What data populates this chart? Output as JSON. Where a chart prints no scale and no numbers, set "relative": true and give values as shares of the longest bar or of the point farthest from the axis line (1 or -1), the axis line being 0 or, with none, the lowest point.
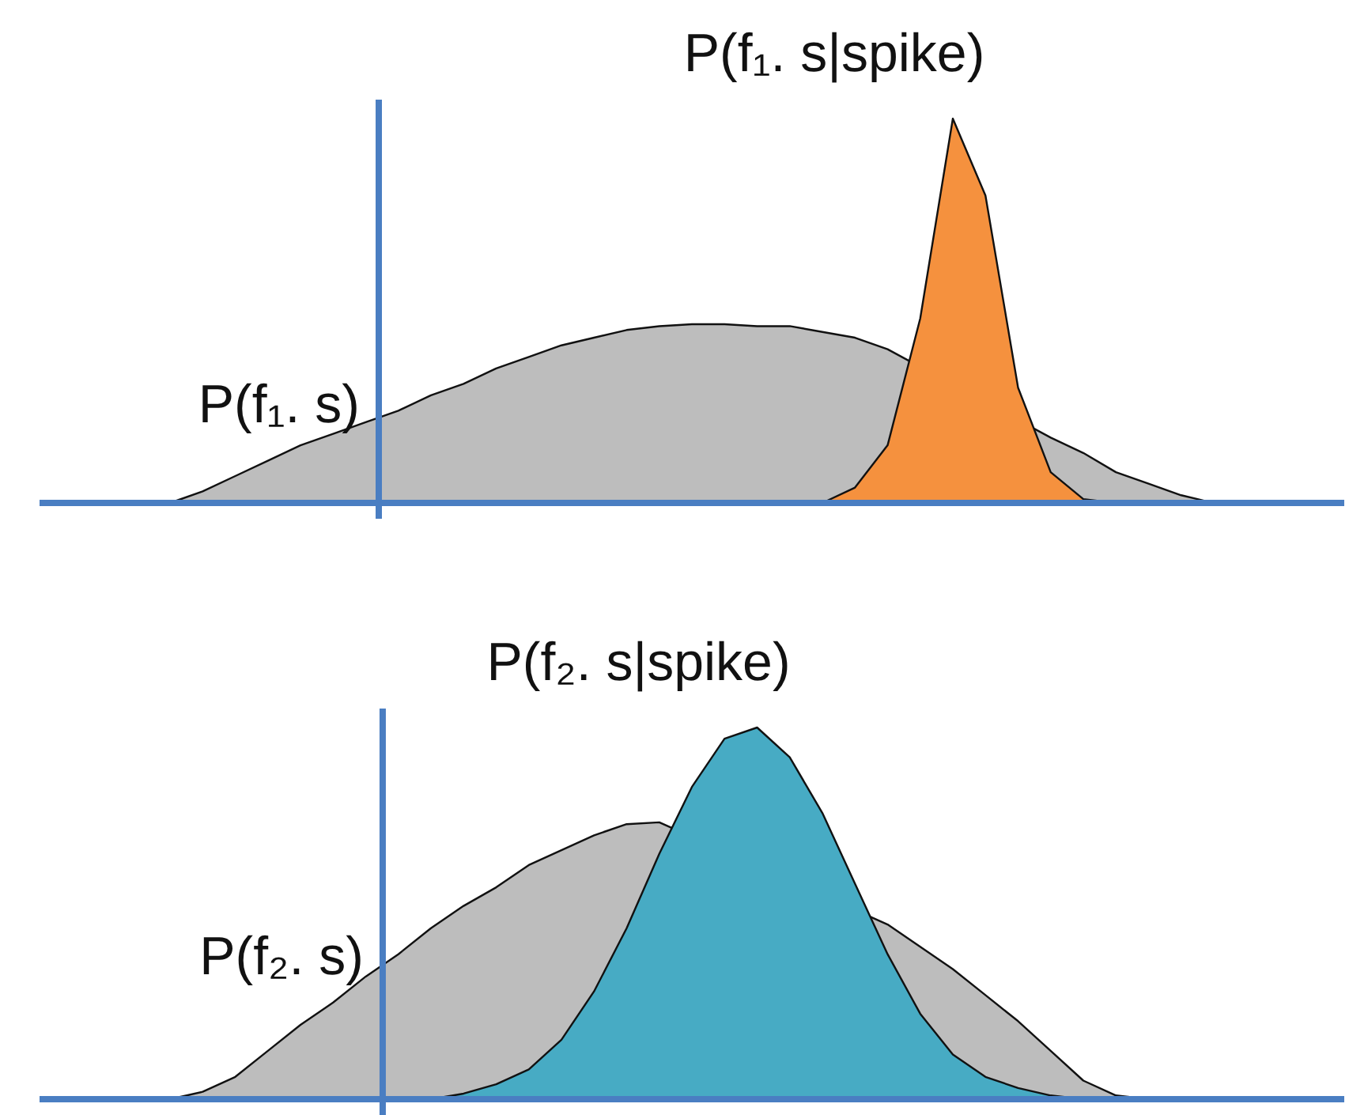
{
  "chart_data": [
    {
      "type": "area",
      "relative": true,
      "categories": [
        null,
        null,
        null,
        null,
        null,
        null,
        null,
        null,
        null,
        null,
        null,
        null,
        null,
        null,
        null,
        null,
        null,
        null,
        null,
        null,
        null,
        null,
        null,
        null,
        null,
        null,
        null,
        null,
        null,
        null,
        null,
        null,
        null,
        null,
        null,
        null,
        null,
        null,
        null,
        null,
        null
      ],
      "series": [
        {
          "name": "P(f₁. s)",
          "color": "#bdbdbd",
          "values": [
            null,
            null,
            null,
            null,
            0,
            0.03,
            0.07,
            0.11,
            0.15,
            0.18,
            0.21,
            0.24,
            0.28,
            0.31,
            0.35,
            0.38,
            0.41,
            0.43,
            0.45,
            0.46,
            0.465,
            0.465,
            0.46,
            0.46,
            0.445,
            0.43,
            0.4,
            null,
            null,
            null,
            null,
            0.17,
            0.13,
            0.08,
            0.05,
            0.02,
            0,
            null,
            null,
            null,
            null
          ]
        },
        {
          "name": "P(f₁. s|spike)",
          "color": "#f5913e",
          "values": [
            null,
            null,
            null,
            null,
            null,
            null,
            null,
            null,
            null,
            null,
            null,
            null,
            null,
            null,
            null,
            null,
            null,
            null,
            null,
            null,
            null,
            null,
            null,
            null,
            0,
            0.04,
            0.15,
            0.48,
            1,
            0.8,
            0.3,
            0.08,
            0.01,
            0,
            null,
            null,
            null,
            null,
            null,
            null,
            null
          ]
        }
      ]
    },
    {
      "type": "area",
      "relative": true,
      "categories": [
        null,
        null,
        null,
        null,
        null,
        null,
        null,
        null,
        null,
        null,
        null,
        null,
        null,
        null,
        null,
        null,
        null,
        null,
        null,
        null,
        null,
        null,
        null,
        null,
        null,
        null,
        null,
        null,
        null,
        null,
        null,
        null,
        null,
        null,
        null,
        null,
        null,
        null,
        null,
        null,
        null
      ],
      "series": [
        {
          "name": "P(f₂. s)",
          "color": "#bdbdbd",
          "values": [
            null,
            null,
            null,
            null,
            0,
            0.02,
            0.06,
            0.13,
            0.2,
            0.26,
            0.33,
            0.39,
            0.46,
            0.52,
            0.57,
            0.63,
            0.67,
            0.71,
            0.74,
            0.745,
            null,
            null,
            null,
            null,
            null,
            null,
            0.47,
            0.41,
            0.35,
            0.28,
            0.21,
            0.13,
            0.05,
            0.01,
            0,
            null,
            null,
            null,
            null,
            null,
            null
          ]
        },
        {
          "name": "P(f₂. s|spike)",
          "color": "#47abc4",
          "values": [
            null,
            null,
            null,
            null,
            null,
            null,
            null,
            null,
            null,
            null,
            null,
            null,
            0,
            0.015,
            0.04,
            0.08,
            0.16,
            0.29,
            0.46,
            0.66,
            0.84,
            0.97,
            1,
            0.92,
            0.77,
            0.58,
            0.39,
            0.23,
            0.12,
            0.06,
            0.03,
            0.01,
            0,
            null,
            null,
            null,
            null,
            null,
            null,
            null,
            null
          ]
        }
      ]
    }
  ]
}
